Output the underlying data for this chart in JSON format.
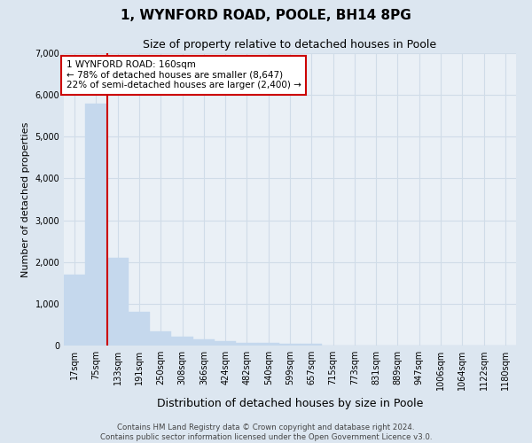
{
  "title": "1, WYNFORD ROAD, POOLE, BH14 8PG",
  "subtitle": "Size of property relative to detached houses in Poole",
  "xlabel": "Distribution of detached houses by size in Poole",
  "ylabel": "Number of detached properties",
  "bin_labels": [
    "17sqm",
    "75sqm",
    "133sqm",
    "191sqm",
    "250sqm",
    "308sqm",
    "366sqm",
    "424sqm",
    "482sqm",
    "540sqm",
    "599sqm",
    "657sqm",
    "715sqm",
    "773sqm",
    "831sqm",
    "889sqm",
    "947sqm",
    "1006sqm",
    "1064sqm",
    "1122sqm",
    "1180sqm"
  ],
  "bar_values": [
    1700,
    5800,
    2100,
    800,
    350,
    220,
    140,
    100,
    70,
    60,
    50,
    40,
    0,
    0,
    0,
    0,
    0,
    0,
    0,
    0,
    0
  ],
  "bar_color": "#c5d8ed",
  "bar_edgecolor": "#c5d8ed",
  "vline_color": "#cc0000",
  "vline_x_index": 2,
  "annotation_title": "1 WYNFORD ROAD: 160sqm",
  "annotation_line1": "← 78% of detached houses are smaller (8,647)",
  "annotation_line2": "22% of semi-detached houses are larger (2,400) →",
  "annotation_box_facecolor": "#ffffff",
  "annotation_box_edgecolor": "#cc0000",
  "ylim": [
    0,
    7000
  ],
  "yticks": [
    0,
    1000,
    2000,
    3000,
    4000,
    5000,
    6000,
    7000
  ],
  "grid_color": "#d0dce8",
  "bg_color": "#dce6f0",
  "plot_bg_color": "#eaf0f6",
  "title_fontsize": 11,
  "subtitle_fontsize": 9,
  "ylabel_fontsize": 8,
  "xlabel_fontsize": 9,
  "tick_fontsize": 7,
  "footer_line1": "Contains HM Land Registry data © Crown copyright and database right 2024.",
  "footer_line2": "Contains public sector information licensed under the Open Government Licence v3.0."
}
